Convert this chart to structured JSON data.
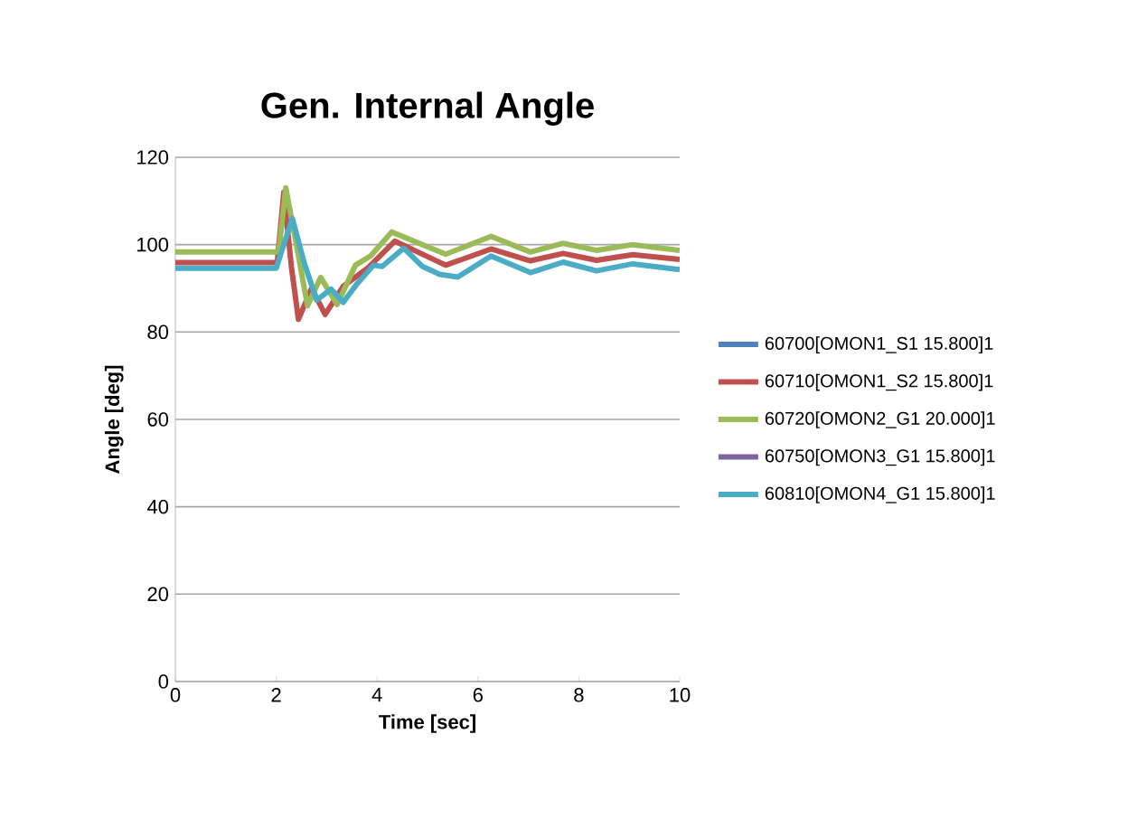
{
  "chart_data": {
    "type": "line",
    "title": "Gen. Internal Angle",
    "xlabel": "Time [sec]",
    "ylabel": "Angle [deg]",
    "xlim": [
      0,
      10
    ],
    "xticks": [
      0,
      2,
      4,
      6,
      8,
      10
    ],
    "ylim": [
      0,
      120
    ],
    "yticks": [
      0,
      20,
      40,
      60,
      80,
      100,
      120
    ],
    "grid": "y",
    "legend": "right",
    "marker": "none",
    "line_style": "solid",
    "series": [
      {
        "name": "60700[OMON1_S1 15.800]1",
        "color": "#4f81bd"
      },
      {
        "name": "60710[OMON1_S2 15.800]1",
        "color": "#c0504d",
        "x": [
          0,
          2.02,
          2.15,
          2.3,
          2.44,
          2.7,
          2.97,
          3.33,
          3.81,
          4.35,
          5.36,
          6.26,
          7.04,
          7.69,
          8.35,
          9.07,
          10
        ],
        "values": [
          95.9,
          95.9,
          112,
          95,
          82.9,
          90,
          84,
          90.5,
          94.6,
          100.8,
          95.3,
          99,
          96.3,
          98,
          96.4,
          97.7,
          96.6
        ]
      },
      {
        "name": "60720[OMON2_G1 20.000]1",
        "color": "#9bbb59",
        "x": [
          0,
          2.05,
          2.19,
          2.4,
          2.62,
          2.88,
          3.21,
          3.57,
          3.87,
          4.29,
          5.36,
          6.26,
          7.04,
          7.69,
          8.35,
          9.07,
          10
        ],
        "values": [
          98.3,
          98.3,
          113,
          100,
          86,
          92.5,
          86.3,
          95.3,
          97.4,
          102.9,
          97.8,
          101.9,
          98.3,
          100.3,
          98.7,
          100,
          98.7
        ]
      },
      {
        "name": "60750[OMON3_G1 15.800]1",
        "color": "#8064a2"
      },
      {
        "name": "60810[OMON4_G1 15.800]1",
        "color": "#4bacc6",
        "x": [
          0,
          2.0,
          2.15,
          2.32,
          2.55,
          2.8,
          3.09,
          3.33,
          3.6,
          3.93,
          4.1,
          4.53,
          4.9,
          5.24,
          5.6,
          6.26,
          7.04,
          7.69,
          8.35,
          9.07,
          10
        ],
        "values": [
          94.6,
          94.6,
          100,
          106,
          96,
          87.3,
          89.8,
          86.8,
          91,
          95.3,
          95,
          99.2,
          95,
          93.2,
          92.6,
          97.4,
          93.6,
          96,
          94,
          95.6,
          94.3
        ]
      }
    ]
  }
}
